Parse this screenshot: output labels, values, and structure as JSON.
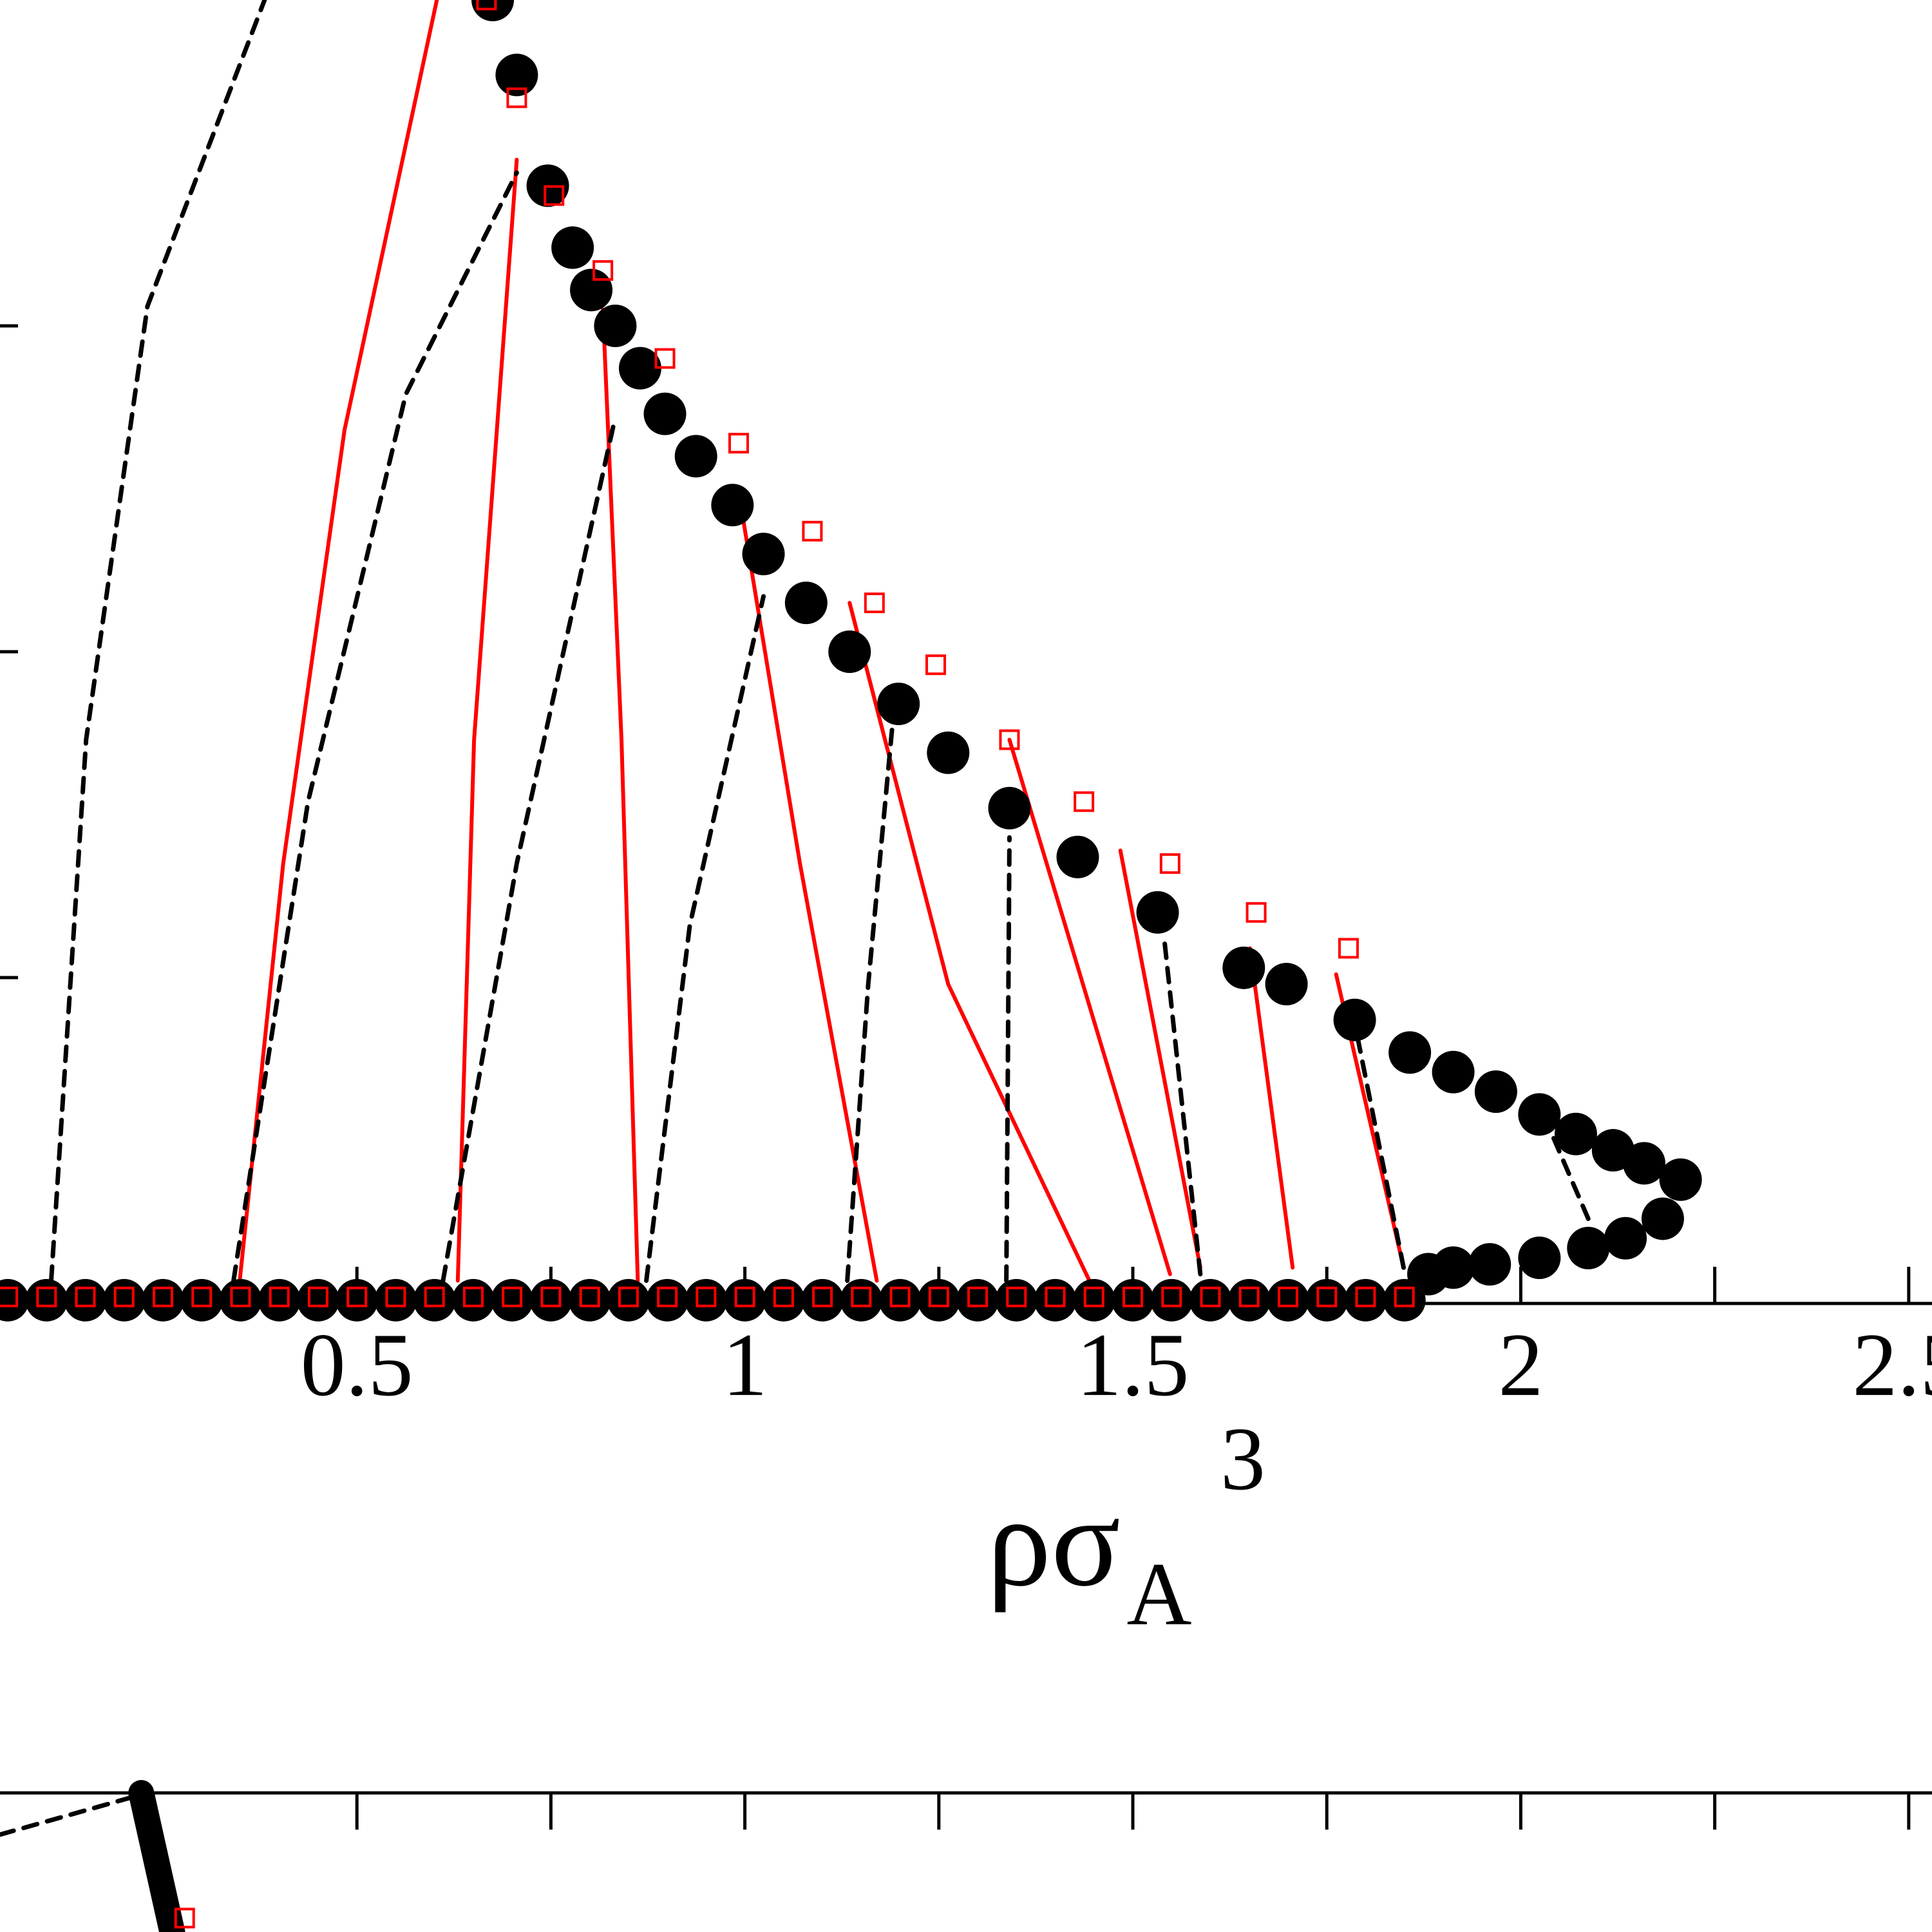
{
  "chart_data": [
    {
      "type": "scatter",
      "xlabel": {
        "base": "ρσ",
        "sub": "A",
        "sup": "3"
      },
      "xlim": [
        0.04,
        2.53
      ],
      "ylim": [
        0,
        4
      ],
      "xticks": [
        0.5,
        1,
        1.5,
        2,
        2.5
      ],
      "xminorticks": [
        0.75,
        1.25,
        1.75,
        2.25
      ],
      "yticks": [
        1,
        2,
        3
      ],
      "series": [
        {
          "marker": "circle",
          "color": "#000000",
          "x": [
            0.675,
            0.706,
            0.746,
            0.778,
            0.802,
            0.833,
            0.865,
            0.897,
            0.937,
            0.984,
            1.024,
            1.079,
            1.135,
            1.198,
            1.262,
            1.341,
            1.429,
            1.532,
            1.643,
            1.698,
            1.786,
            1.857,
            1.913,
            1.968,
            2.024,
            2.071,
            2.119,
            2.159,
            2.206,
            2.183,
            2.135,
            2.087,
            2.024,
            1.96,
            1.913,
            1.881
          ],
          "y": [
            4.0,
            3.77,
            3.43,
            3.24,
            3.11,
            3.0,
            2.87,
            2.73,
            2.6,
            2.45,
            2.3,
            2.15,
            2.0,
            1.84,
            1.69,
            1.52,
            1.37,
            1.2,
            1.03,
            0.98,
            0.87,
            0.77,
            0.71,
            0.65,
            0.58,
            0.52,
            0.47,
            0.43,
            0.38,
            0.26,
            0.2,
            0.17,
            0.14,
            0.12,
            0.11,
            0.09
          ]
        },
        {
          "marker": "circle",
          "color": "#000000",
          "x": [
            0.05,
            0.1,
            0.15,
            0.2,
            0.25,
            0.3,
            0.35,
            0.4,
            0.45,
            0.5,
            0.55,
            0.6,
            0.65,
            0.7,
            0.75,
            0.8,
            0.85,
            0.9,
            0.95,
            1.0,
            1.05,
            1.1,
            1.15,
            1.2,
            1.25,
            1.3,
            1.35,
            1.4,
            1.45,
            1.5,
            1.55,
            1.6,
            1.65,
            1.7,
            1.75,
            1.8,
            1.85
          ],
          "y": [
            0.01,
            0.01,
            0.01,
            0.01,
            0.01,
            0.01,
            0.01,
            0.01,
            0.01,
            0.01,
            0.01,
            0.01,
            0.01,
            0.01,
            0.01,
            0.01,
            0.01,
            0.01,
            0.01,
            0.01,
            0.01,
            0.01,
            0.01,
            0.01,
            0.01,
            0.01,
            0.01,
            0.01,
            0.01,
            0.01,
            0.01,
            0.01,
            0.01,
            0.01,
            0.01,
            0.01,
            0.01
          ]
        },
        {
          "marker": "square",
          "color": "#ff0000",
          "x": [
            0.667,
            0.706,
            0.754,
            0.817,
            0.897,
            0.992,
            1.087,
            1.167,
            1.246,
            1.341,
            1.437,
            1.548,
            1.659,
            1.778
          ],
          "y": [
            4.0,
            3.7,
            3.4,
            3.17,
            2.9,
            2.64,
            2.37,
            2.15,
            1.96,
            1.73,
            1.54,
            1.35,
            1.2,
            1.09
          ]
        },
        {
          "marker": "square",
          "color": "#ff0000",
          "x": [
            0.05,
            0.1,
            0.15,
            0.2,
            0.25,
            0.3,
            0.35,
            0.4,
            0.45,
            0.5,
            0.55,
            0.6,
            0.65,
            0.7,
            0.75,
            0.8,
            0.85,
            0.9,
            0.95,
            1.0,
            1.05,
            1.1,
            1.15,
            1.2,
            1.25,
            1.3,
            1.35,
            1.4,
            1.45,
            1.5,
            1.55,
            1.6,
            1.65,
            1.7,
            1.75,
            1.8,
            1.85
          ],
          "y": [
            0.02,
            0.02,
            0.02,
            0.02,
            0.02,
            0.02,
            0.02,
            0.02,
            0.02,
            0.02,
            0.02,
            0.02,
            0.02,
            0.02,
            0.02,
            0.02,
            0.02,
            0.02,
            0.02,
            0.02,
            0.02,
            0.02,
            0.02,
            0.02,
            0.02,
            0.02,
            0.02,
            0.02,
            0.02,
            0.02,
            0.02,
            0.02,
            0.02,
            0.02,
            0.02,
            0.02,
            0.02
          ]
        },
        {
          "style": "solid",
          "color": "#ff0000",
          "x": [
            0.349,
            0.405,
            0.484,
            0.603
          ],
          "y": [
            0.07,
            1.35,
            2.68,
            4.0
          ]
        },
        {
          "style": "solid",
          "color": "#ff0000",
          "x": [
            0.63,
            0.651,
            0.706
          ],
          "y": [
            0.07,
            1.73,
            3.51
          ]
        },
        {
          "style": "solid",
          "color": "#ff0000",
          "x": [
            0.862,
            0.841,
            0.817
          ],
          "y": [
            0.07,
            1.73,
            3.05
          ]
        },
        {
          "style": "solid",
          "color": "#ff0000",
          "x": [
            1.17,
            1.071,
            0.992
          ],
          "y": [
            0.07,
            1.35,
            2.49
          ]
        },
        {
          "style": "solid",
          "color": "#ff0000",
          "x": [
            1.444,
            1.262,
            1.135
          ],
          "y": [
            0.07,
            0.98,
            2.15
          ]
        },
        {
          "style": "solid",
          "color": "#ff0000",
          "x": [
            1.548,
            1.341
          ],
          "y": [
            0.09,
            1.73
          ]
        },
        {
          "style": "solid",
          "color": "#ff0000",
          "x": [
            1.587,
            1.484
          ],
          "y": [
            0.11,
            1.39
          ]
        },
        {
          "style": "solid",
          "color": "#ff0000",
          "x": [
            1.706,
            1.651
          ],
          "y": [
            0.11,
            1.09
          ]
        },
        {
          "style": "solid",
          "color": "#ff0000",
          "x": [
            1.849,
            1.762
          ],
          "y": [
            0.11,
            1.01
          ]
        },
        {
          "style": "dashed",
          "color": "#000000",
          "x": [
            0.106,
            0.151,
            0.23,
            0.381
          ],
          "y": [
            0.07,
            1.73,
            3.06,
            4.0
          ]
        },
        {
          "style": "dashed",
          "color": "#000000",
          "x": [
            0.341,
            0.437,
            0.563,
            0.706
          ],
          "y": [
            0.07,
            1.54,
            2.79,
            3.47
          ]
        },
        {
          "style": "dashed",
          "color": "#000000",
          "x": [
            0.611,
            0.706,
            0.833
          ],
          "y": [
            0.07,
            1.35,
            2.72
          ]
        },
        {
          "style": "dashed",
          "color": "#000000",
          "x": [
            0.873,
            0.929,
            1.024
          ],
          "y": [
            0.07,
            1.16,
            2.17
          ]
        },
        {
          "style": "dashed",
          "color": "#000000",
          "x": [
            1.132,
            1.159,
            1.19
          ],
          "y": [
            0.07,
            0.98,
            1.77
          ]
        },
        {
          "style": "dashed",
          "color": "#000000",
          "x": [
            1.337,
            1.341
          ],
          "y": [
            0.07,
            1.43
          ]
        },
        {
          "style": "dashed",
          "color": "#000000",
          "x": [
            1.587,
            1.54
          ],
          "y": [
            0.09,
            1.13
          ]
        },
        {
          "style": "dashed",
          "color": "#000000",
          "x": [
            1.849,
            1.786
          ],
          "y": [
            0.11,
            0.86
          ]
        },
        {
          "style": "dashed",
          "color": "#000000",
          "x": [
            2.087,
            2.04
          ],
          "y": [
            0.26,
            0.52
          ]
        }
      ]
    },
    {
      "type": "scatter",
      "xlim": [
        0.04,
        2.53
      ],
      "ylim": [
        0,
        1
      ],
      "xminorticks": [
        0.5,
        0.75,
        1,
        1.25,
        1.5,
        1.75,
        2,
        2.25,
        2.5
      ],
      "series": [
        {
          "style": "thick",
          "color": "#000000",
          "x": [
            0.222,
            0.262
          ],
          "y": [
            1.0,
            0.8
          ]
        },
        {
          "style": "dashed",
          "color": "#000000",
          "x": [
            0.04,
            0.214
          ],
          "y": [
            0.94,
            0.995
          ]
        },
        {
          "marker": "square",
          "color": "#ff0000",
          "x": [
            0.278
          ],
          "y": [
            0.82
          ]
        }
      ]
    }
  ]
}
